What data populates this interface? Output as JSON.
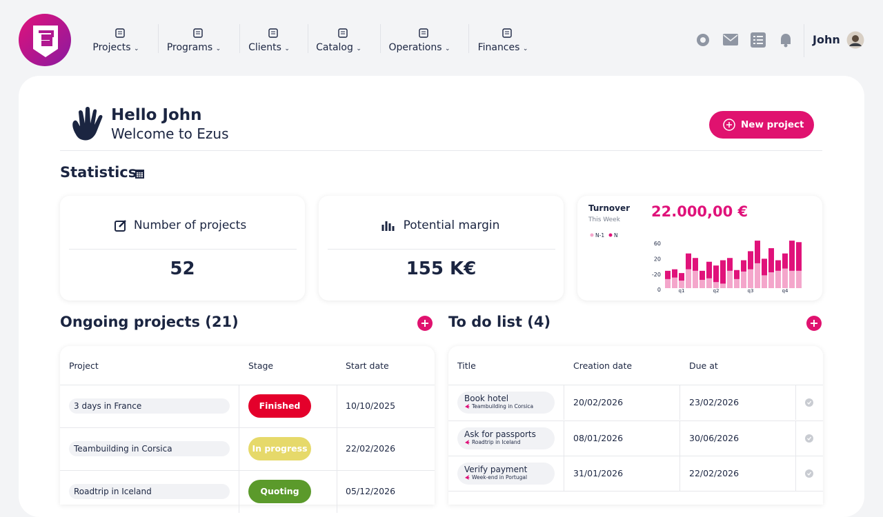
{
  "nav": {
    "items": [
      "Projects",
      "Programs",
      "Clients",
      "Catalog",
      "Operations",
      "Finances"
    ],
    "user": "John"
  },
  "header": {
    "greeting": "Hello John",
    "welcome": "Welcome to Ezus",
    "button": "New project"
  },
  "statistics": {
    "title": "Statistics",
    "cards": [
      {
        "label": "Number of projects",
        "value": "52"
      },
      {
        "label": "Potential margin",
        "value": "155 K€"
      }
    ],
    "turnover": {
      "title": "Turnover",
      "period": "This Week",
      "amount": "22.000,00 €",
      "chart_data": {
        "type": "bar",
        "y_axis_labels": [
          "60",
          "20",
          "-20",
          "0"
        ],
        "categories": [
          null,
          null,
          "q1",
          null,
          null,
          null,
          null,
          "q2",
          null,
          null,
          null,
          null,
          "q3",
          null,
          null,
          null,
          null,
          "q4",
          null,
          null
        ],
        "ylim": [
          0,
          64
        ],
        "series": [
          {
            "name": "N-1",
            "color": "#f4a6cb",
            "values": [
              12,
              14,
              10,
              25,
              23,
              11,
              13,
              8,
              6,
              23,
              12,
              22,
              25,
              33,
              17,
              21,
              23,
              26,
              23,
              23
            ]
          },
          {
            "name": "N",
            "color": "#e0127a",
            "values": [
              11,
              11,
              10,
              21,
              17,
              12,
              22,
              22,
              31,
              17,
              12,
              15,
              24,
              30,
              22,
              32,
              14,
              20,
              40,
              38
            ]
          }
        ]
      }
    }
  },
  "ongoing": {
    "title": "Ongoing projects (21)",
    "columns": [
      "Project",
      "Stage",
      "Start date"
    ],
    "rows": [
      [
        "3 days in France",
        "Finished",
        "10/10/2025"
      ],
      [
        "Teambuilding in Corsica",
        "In progress",
        "22/02/2026"
      ],
      [
        "Roadtrip in Iceland",
        "Quoting",
        "05/12/2026"
      ]
    ]
  },
  "todo": {
    "title": "To do list (4)",
    "columns": [
      "Title",
      "Creation date",
      "Due at"
    ],
    "rows": [
      [
        "Book hotel",
        "Teambuilding in Corsica",
        "20/02/2026",
        "23/02/2026"
      ],
      [
        "Ask for passports",
        "Roadtrip in Iceland",
        "08/01/2026",
        "30/06/2026"
      ],
      [
        "Verify payment",
        "Week-end in Portugal",
        "31/01/2026",
        "22/02/2026"
      ]
    ]
  }
}
